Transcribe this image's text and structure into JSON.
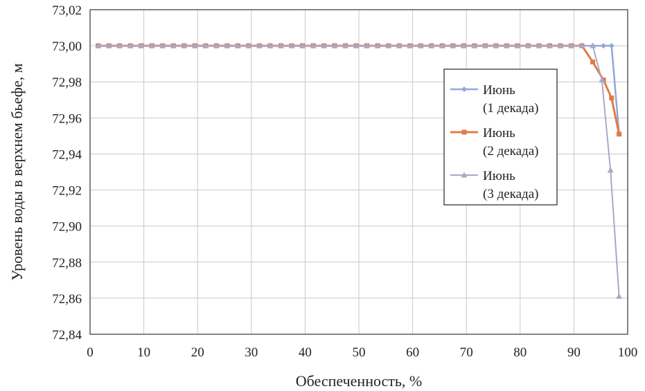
{
  "chart_data": {
    "type": "line",
    "title": "",
    "xlabel": "Обеспеченность, %",
    "ylabel": "Уровень воды в верхнем бьефе, м",
    "xlim": [
      0,
      100
    ],
    "ylim": [
      72.84,
      73.02
    ],
    "x_ticks": [
      "0",
      "10",
      "20",
      "30",
      "40",
      "50",
      "60",
      "70",
      "80",
      "90",
      "100"
    ],
    "y_ticks": [
      "72,84",
      "72,86",
      "72,88",
      "72,90",
      "72,92",
      "72,94",
      "72,96",
      "72,98",
      "73,00",
      "73,02"
    ],
    "grid": true,
    "legend_position": "right",
    "series": [
      {
        "name": "Июнь (1 декада)",
        "legend_lines": [
          "Июнь",
          "(1 декада)"
        ],
        "color": "#8fa8d6",
        "marker": "diamond",
        "x": [
          1.5,
          3.5,
          5.5,
          7.5,
          9.5,
          11.5,
          13.5,
          15.5,
          17.5,
          19.5,
          21.5,
          23.5,
          25.5,
          27.5,
          29.5,
          31.5,
          33.5,
          35.5,
          37.5,
          39.5,
          41.5,
          43.5,
          45.5,
          47.5,
          49.5,
          51.5,
          53.5,
          55.5,
          57.5,
          59.5,
          61.5,
          63.5,
          65.5,
          67.5,
          69.5,
          71.5,
          73.5,
          75.5,
          77.5,
          79.5,
          81.5,
          83.5,
          85.5,
          87.5,
          89.5,
          91.5,
          93.5,
          95.5,
          97.0,
          98.4
        ],
        "y": [
          73.0,
          73.0,
          73.0,
          73.0,
          73.0,
          73.0,
          73.0,
          73.0,
          73.0,
          73.0,
          73.0,
          73.0,
          73.0,
          73.0,
          73.0,
          73.0,
          73.0,
          73.0,
          73.0,
          73.0,
          73.0,
          73.0,
          73.0,
          73.0,
          73.0,
          73.0,
          73.0,
          73.0,
          73.0,
          73.0,
          73.0,
          73.0,
          73.0,
          73.0,
          73.0,
          73.0,
          73.0,
          73.0,
          73.0,
          73.0,
          73.0,
          73.0,
          73.0,
          73.0,
          73.0,
          73.0,
          73.0,
          73.0,
          73.0,
          72.951
        ]
      },
      {
        "name": "Июнь (2 декада)",
        "legend_lines": [
          "Июнь",
          "(2 декада)"
        ],
        "color": "#e07b47",
        "marker": "square",
        "x": [
          1.5,
          3.5,
          5.5,
          7.5,
          9.5,
          11.5,
          13.5,
          15.5,
          17.5,
          19.5,
          21.5,
          23.5,
          25.5,
          27.5,
          29.5,
          31.5,
          33.5,
          35.5,
          37.5,
          39.5,
          41.5,
          43.5,
          45.5,
          47.5,
          49.5,
          51.5,
          53.5,
          55.5,
          57.5,
          59.5,
          61.5,
          63.5,
          65.5,
          67.5,
          69.5,
          71.5,
          73.5,
          75.5,
          77.5,
          79.5,
          81.5,
          83.5,
          85.5,
          87.5,
          89.5,
          91.5,
          93.5,
          95.5,
          97.0,
          98.4
        ],
        "y": [
          73.0,
          73.0,
          73.0,
          73.0,
          73.0,
          73.0,
          73.0,
          73.0,
          73.0,
          73.0,
          73.0,
          73.0,
          73.0,
          73.0,
          73.0,
          73.0,
          73.0,
          73.0,
          73.0,
          73.0,
          73.0,
          73.0,
          73.0,
          73.0,
          73.0,
          73.0,
          73.0,
          73.0,
          73.0,
          73.0,
          73.0,
          73.0,
          73.0,
          73.0,
          73.0,
          73.0,
          73.0,
          73.0,
          73.0,
          73.0,
          73.0,
          73.0,
          73.0,
          73.0,
          73.0,
          73.0,
          72.991,
          72.981,
          72.971,
          72.951
        ]
      },
      {
        "name": "Июнь (3 декада)",
        "legend_lines": [
          "Июнь",
          "(3 декада)"
        ],
        "color": "#a8a8c8",
        "marker": "triangle",
        "x": [
          1.5,
          3.5,
          5.5,
          7.5,
          9.5,
          11.5,
          13.5,
          15.5,
          17.5,
          19.5,
          21.5,
          23.5,
          25.5,
          27.5,
          29.5,
          31.5,
          33.5,
          35.5,
          37.5,
          39.5,
          41.5,
          43.5,
          45.5,
          47.5,
          49.5,
          51.5,
          53.5,
          55.5,
          57.5,
          59.5,
          61.5,
          63.5,
          65.5,
          67.5,
          69.5,
          71.5,
          73.5,
          75.5,
          77.5,
          79.5,
          81.5,
          83.5,
          85.5,
          87.5,
          89.5,
          91.5,
          93.5,
          95.2,
          96.8,
          98.4
        ],
        "y": [
          73.0,
          73.0,
          73.0,
          73.0,
          73.0,
          73.0,
          73.0,
          73.0,
          73.0,
          73.0,
          73.0,
          73.0,
          73.0,
          73.0,
          73.0,
          73.0,
          73.0,
          73.0,
          73.0,
          73.0,
          73.0,
          73.0,
          73.0,
          73.0,
          73.0,
          73.0,
          73.0,
          73.0,
          73.0,
          73.0,
          73.0,
          73.0,
          73.0,
          73.0,
          73.0,
          73.0,
          73.0,
          73.0,
          73.0,
          73.0,
          73.0,
          73.0,
          73.0,
          73.0,
          73.0,
          73.0,
          73.0,
          72.981,
          72.931,
          72.861
        ]
      }
    ]
  }
}
